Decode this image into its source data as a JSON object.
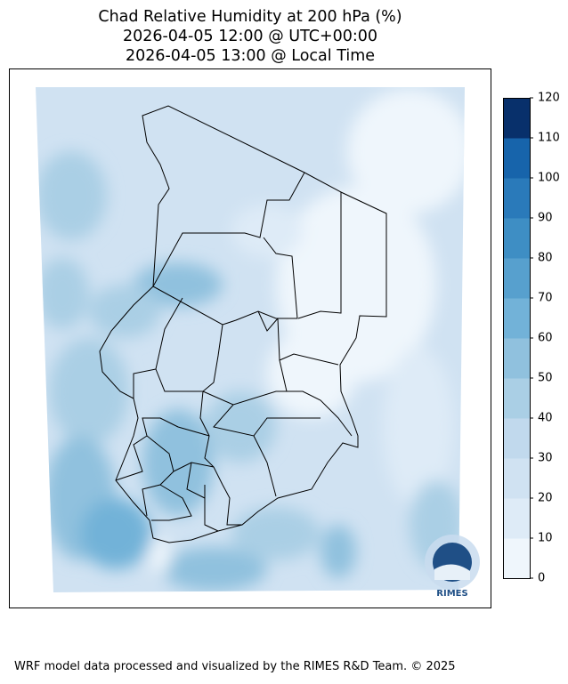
{
  "title": {
    "line1": "Chad Relative Humidity at 200 hPa (%)",
    "line2": "2026-04-05 12:00 @ UTC+00:00",
    "line3": "2026-04-05 13:00 @ Local Time"
  },
  "colorbar": {
    "ticks": [
      "0",
      "10",
      "20",
      "30",
      "40",
      "50",
      "60",
      "70",
      "80",
      "90",
      "100",
      "110",
      "120"
    ],
    "colors": [
      "#eff6fc",
      "#deebf7",
      "#d0e2f2",
      "#c1d9ed",
      "#aacfe5",
      "#90c1de",
      "#72b2d8",
      "#57a0ce",
      "#3e8ec4",
      "#2a7aba",
      "#1764ab",
      "#084c94"
    ],
    "top_color": "#08306b"
  },
  "logo": {
    "text": "RIMES"
  },
  "footer": "WRF model data processed and visualized by the RIMES R&D Team. © 2025"
}
